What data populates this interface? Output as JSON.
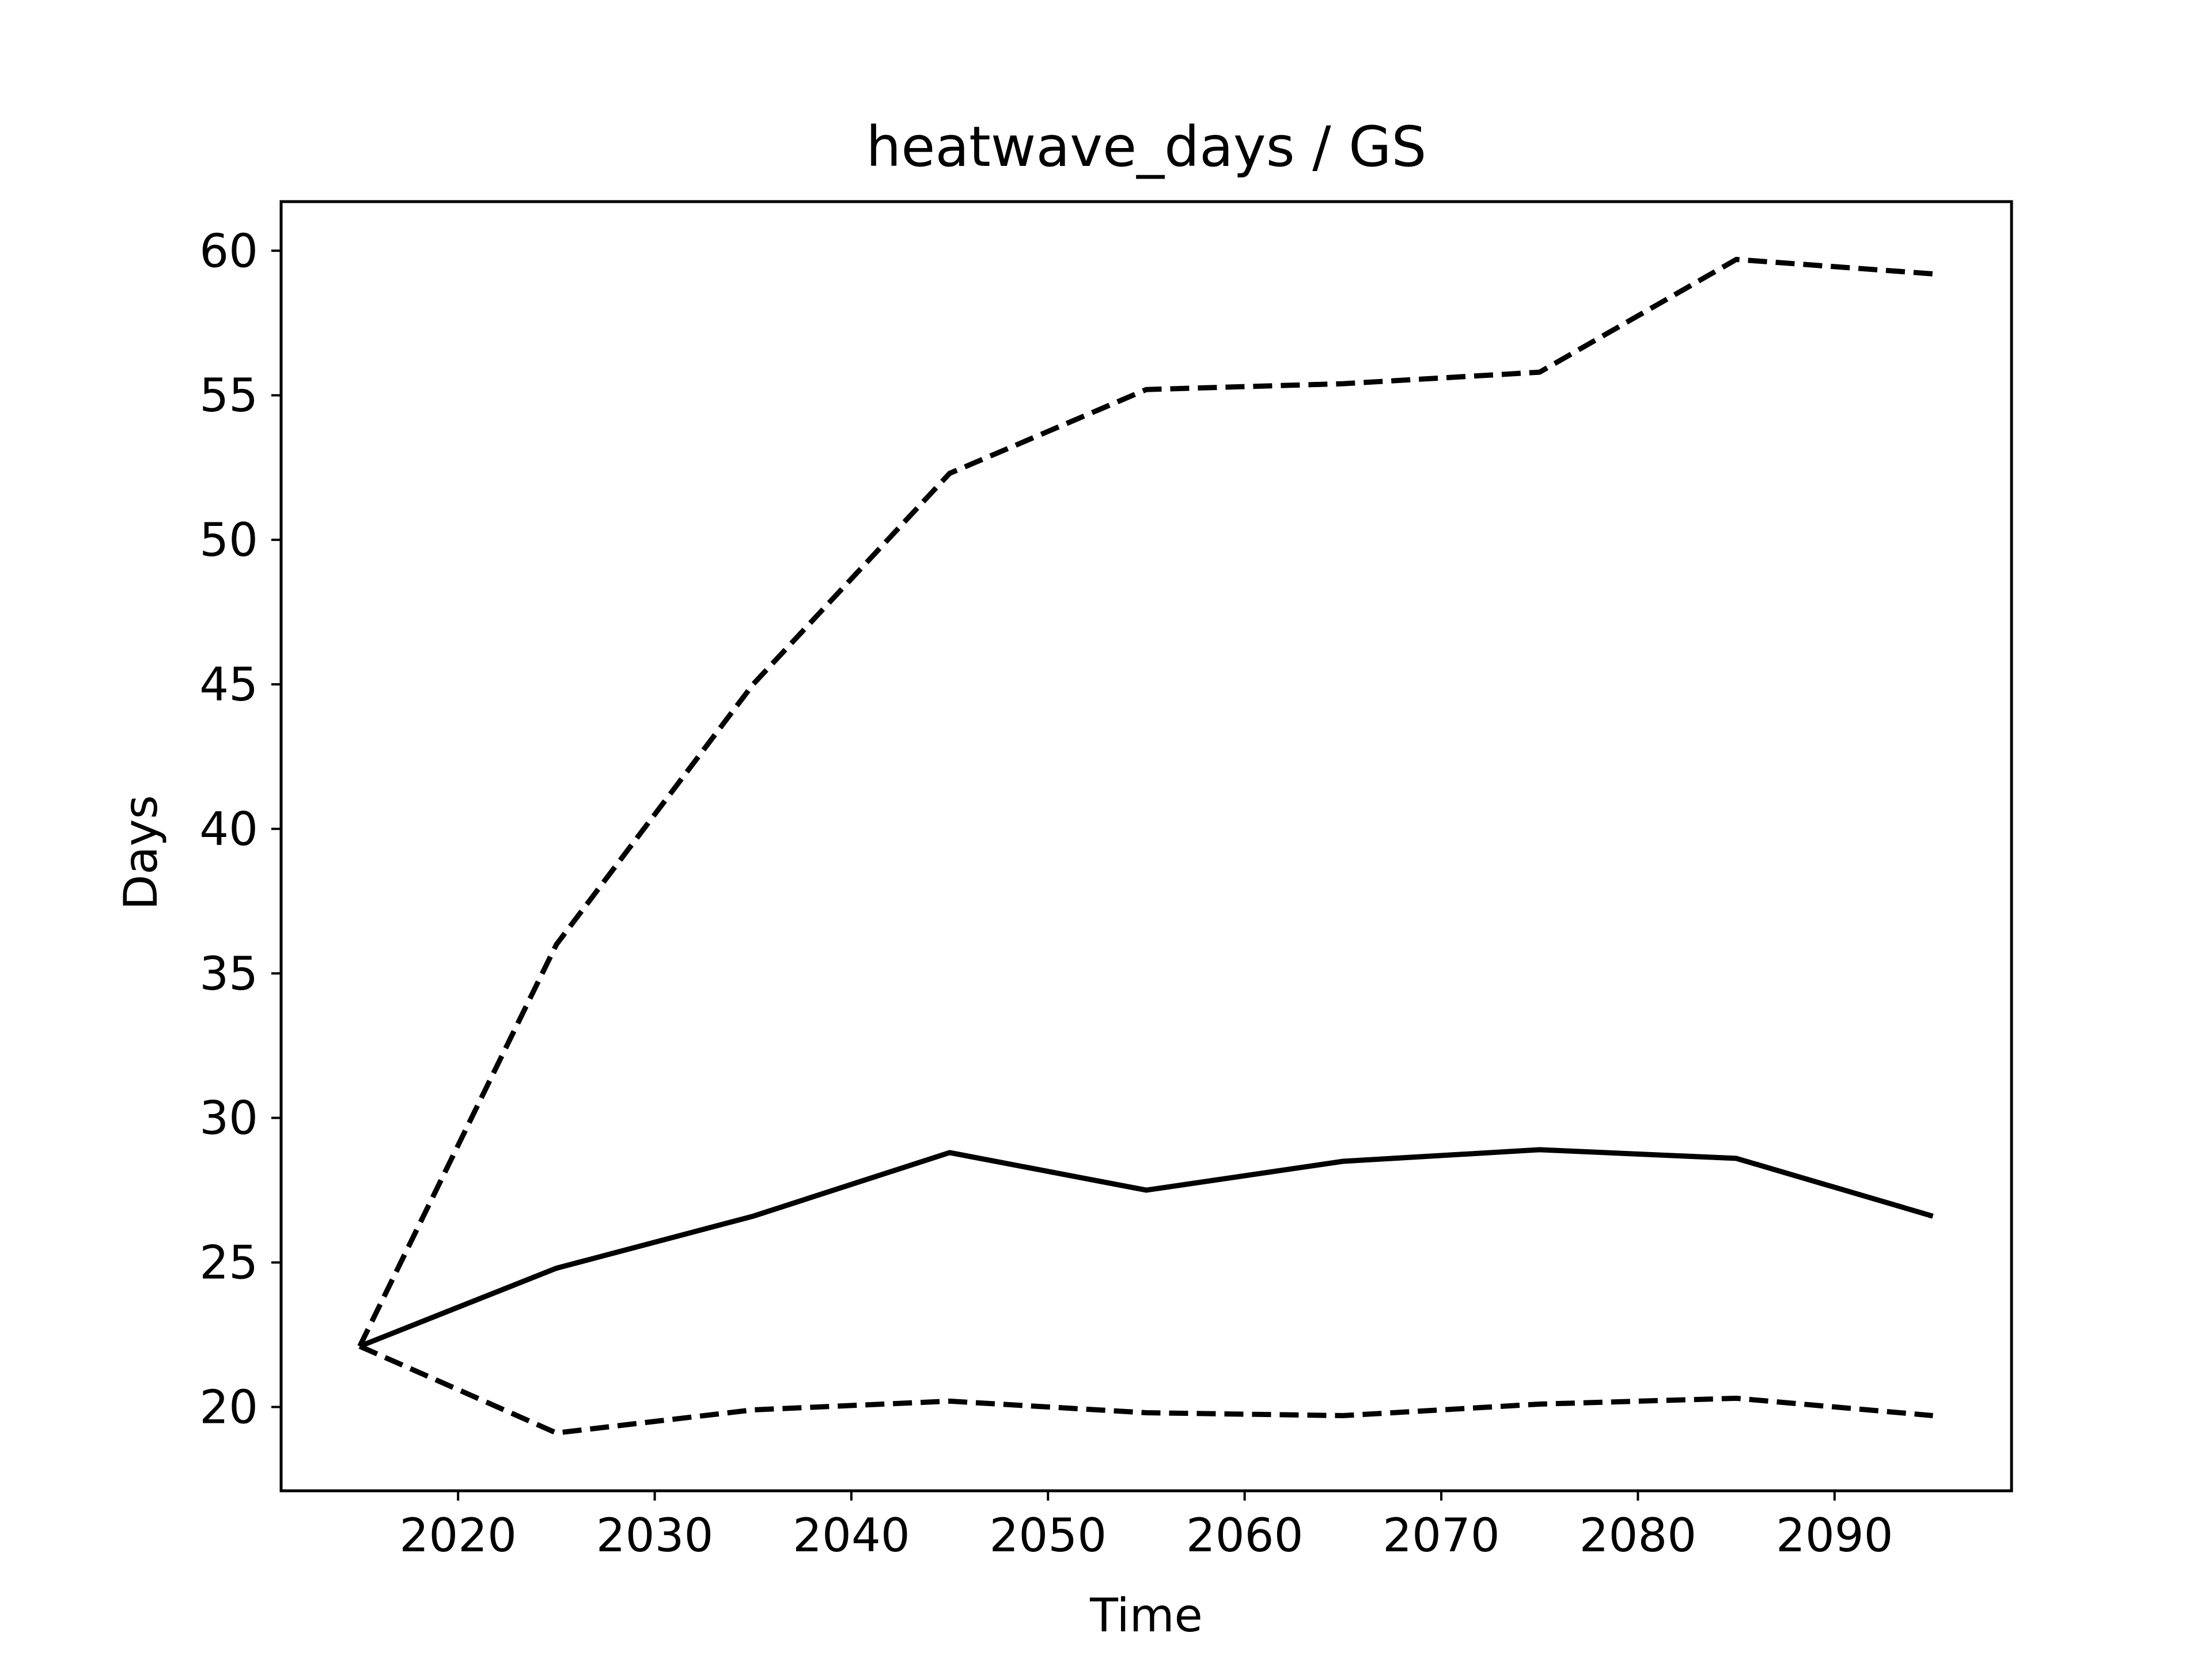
{
  "chart_data": {
    "type": "line",
    "title": "heatwave_days / GS",
    "xlabel": "Time",
    "ylabel": "Days",
    "xlim": [
      2011,
      2099
    ],
    "ylim": [
      17.1,
      61.7
    ],
    "x_ticks": [
      2020,
      2030,
      2040,
      2050,
      2060,
      2070,
      2080,
      2090
    ],
    "y_ticks": [
      20,
      25,
      30,
      35,
      40,
      45,
      50,
      55,
      60
    ],
    "grid": false,
    "legend": "none",
    "x": [
      2015,
      2025,
      2035,
      2045,
      2055,
      2065,
      2075,
      2085,
      2095
    ],
    "series": [
      {
        "style": "solid",
        "color": "#000000",
        "values": [
          22.1,
          24.8,
          26.6,
          28.8,
          27.5,
          28.5,
          28.9,
          28.6,
          26.6
        ]
      },
      {
        "style": "dashed",
        "color": "#000000",
        "values": [
          22.1,
          36.0,
          45.0,
          52.3,
          55.2,
          55.4,
          55.8,
          59.7,
          59.2
        ]
      },
      {
        "style": "dashed",
        "color": "#000000",
        "values": [
          22.1,
          19.1,
          19.9,
          20.2,
          19.8,
          19.7,
          20.1,
          20.3,
          19.7
        ]
      }
    ]
  }
}
